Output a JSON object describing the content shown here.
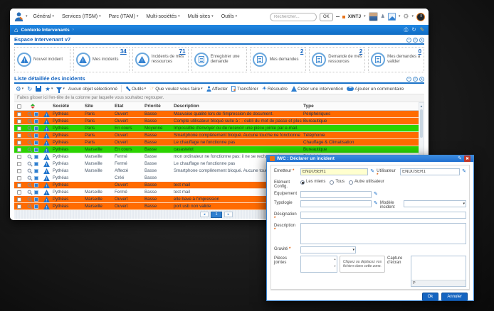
{
  "top_bar": {
    "menus": [
      "Général",
      "Services (ITSM)",
      "Parc (ITAM)",
      "Multi-sociétés",
      "Multi-sites",
      "Outils"
    ],
    "search_placeholder": "Rechercher...",
    "ok_label": "OK",
    "username": "XINTJ"
  },
  "breadcrumb": {
    "label": "Contexte Intervenants",
    "separator": "›"
  },
  "dashboard": {
    "title": "Espace Intervenant v7",
    "tiles": [
      {
        "label": "Nouvel incident",
        "count": "",
        "icon": "incident"
      },
      {
        "label": "Mes incidents",
        "count": "34",
        "icon": "incident"
      },
      {
        "label": "Incidents de mes ressources",
        "count": "71",
        "icon": "incident"
      },
      {
        "label": "Enregistrer une demande",
        "count": "",
        "icon": "request"
      },
      {
        "label": "Mes demandes",
        "count": "2",
        "icon": "request"
      },
      {
        "label": "Demande de mes ressources",
        "count": "2",
        "icon": "request"
      },
      {
        "label": "Mes demandes à valider",
        "count": "0",
        "icon": "request"
      }
    ]
  },
  "incident_list": {
    "title": "Liste détaillée des incidents",
    "toolbar": {
      "selection_status": "Aucun objet sélectionné",
      "outils": "Outils",
      "que_voulez": "Que voulez vous faire",
      "affecter": "Affecter",
      "transferer": "Transférer",
      "resoudre": "Résoudre",
      "creer_intervention": "Créer une intervention",
      "ajouter_commentaire": "Ajouter un commentaire"
    },
    "group_hint": "Faites glisser ici l'en-tête de la colonne par laquelle vous souhaitez regrouper.",
    "columns": {
      "societe": "Société",
      "site": "Site",
      "etat": "Etat",
      "priorite": "Priorité",
      "description": "Description",
      "type": "Type"
    },
    "rows": [
      {
        "societe": "Pythéas",
        "site": "Paris",
        "etat": "Ouvert",
        "priorite": "Basse",
        "description": "Mauvaise qualité lors de l'impression de document.",
        "type": "Périphériques",
        "hl": "o"
      },
      {
        "societe": "Pythéas",
        "site": "Paris",
        "etat": "Ouvert",
        "priorite": "Basse",
        "description": "Compte utilisateur bloqué suite à : - oubli du mot de passe et plusieurs saisies incorrectes",
        "type": "Bureautique",
        "hl": "o"
      },
      {
        "societe": "Pythéas",
        "site": "Paris",
        "etat": "En cours",
        "priorite": "Moyenne",
        "description": "Impossible d'envoyer ou de recevoir une pièce jointe par e-mail.",
        "type": "",
        "hl": "g"
      },
      {
        "societe": "Pythéas",
        "site": "Paris",
        "etat": "Ouvert",
        "priorite": "Basse",
        "description": "Smartphone complètement bloqué. Aucune touche ne fonctionne",
        "type": "Téléphonie",
        "hl": "o"
      },
      {
        "societe": "Pythéas",
        "site": "Paris",
        "etat": "Ouvert",
        "priorite": "Basse",
        "description": "Le chauffage ne fonctionne pas",
        "type": "Chauffage & Climatisation",
        "hl": "o"
      },
      {
        "societe": "Pythéas",
        "site": "Marseille",
        "etat": "En cours",
        "priorite": "Basse",
        "description": "casastelot",
        "type": "Bureautique",
        "hl": "g"
      },
      {
        "societe": "Pythéas",
        "site": "Marseille",
        "etat": "Fermé",
        "priorite": "Basse",
        "description": "mon ordinateur ne fonctionne pas: il ne se recharge plus",
        "type": "Périphériques",
        "hl": "w"
      },
      {
        "societe": "Pythéas",
        "site": "Marseille",
        "etat": "Fermé",
        "priorite": "Basse",
        "description": "Le chauffage ne fonctionne pas",
        "type": "",
        "hl": "w"
      },
      {
        "societe": "Pythéas",
        "site": "Marseille",
        "etat": "Affecté",
        "priorite": "Basse",
        "description": "Smartphone complètement bloqué. Aucune touche ne fonctionne",
        "type": "",
        "hl": "w"
      },
      {
        "societe": "Pythéas",
        "site": "",
        "etat": "Créé",
        "priorite": "Basse",
        "description": "",
        "type": "",
        "hl": "w"
      },
      {
        "societe": "Pythéas",
        "site": "",
        "etat": "Ouvert",
        "priorite": "Basse",
        "description": "test mail",
        "type": "",
        "hl": "o"
      },
      {
        "societe": "Pythéas",
        "site": "Marseille",
        "etat": "Fermé",
        "priorite": "Basse",
        "description": "test mail",
        "type": "",
        "hl": "w"
      },
      {
        "societe": "Pythéas",
        "site": "Marseille",
        "etat": "Ouvert",
        "priorite": "Basse",
        "description": "elle bave à l'impression",
        "type": "",
        "hl": "o"
      },
      {
        "societe": "Pythéas",
        "site": "Marseille",
        "etat": "Ouvert",
        "priorite": "Basse",
        "description": "port usb non valide",
        "type": "",
        "hl": "o"
      }
    ],
    "pagination": {
      "current": "1"
    }
  },
  "modal": {
    "title": "IWC : Déclarer un incident",
    "fields": {
      "emetteur_label": "Emetteur",
      "emetteur_value": "ENDUSER1",
      "utilisateur_label": "Utilisateur",
      "utilisateur_value": "ENDUSER1",
      "element_config_label": "Elément Config.",
      "radio_options": [
        "Les miens",
        "Tous",
        "Autre utilisateur"
      ],
      "radio_selected": "Les miens",
      "equipement_label": "Equipement",
      "typologie_label": "Typologie",
      "modele_label": "Modèle incident",
      "designation_label": "Désignation",
      "description_label": "Description",
      "gravite_label": "Gravité",
      "pieces_label": "Pièces jointes",
      "dropzone_text": "Cliquez ou déplacez vos fichiers dans cette zone.",
      "capture_label": "Capture d'écran",
      "paste_hint": "P"
    },
    "buttons": {
      "ok": "Ok",
      "cancel": "Annuler"
    }
  }
}
